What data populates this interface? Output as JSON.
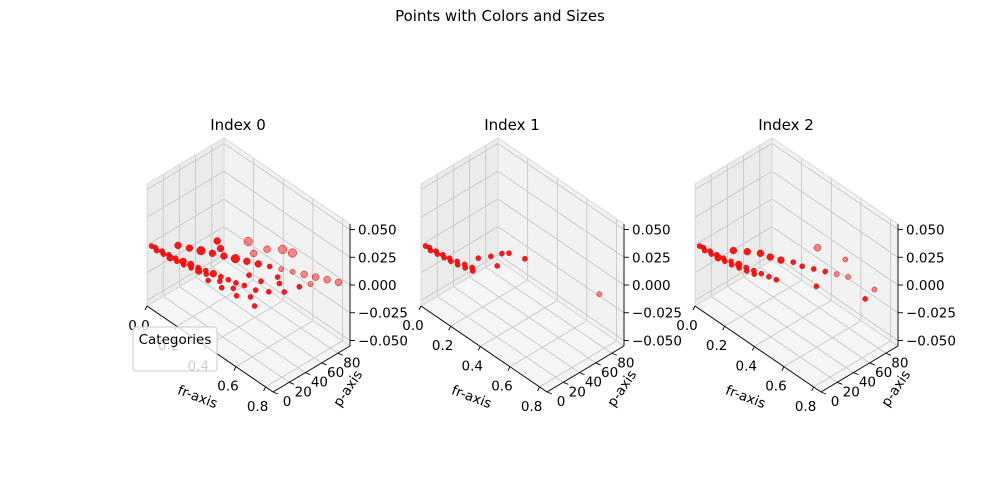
{
  "figure": {
    "suptitle": "Points with Colors and Sizes"
  },
  "legend": {
    "title": "Categories"
  },
  "colors": {
    "points": "#ff0000",
    "pane_back": "#f2f2f2",
    "pane_side": "#ebebeb",
    "pane_floor": "#f5f5f5",
    "grid": "#cccccc"
  },
  "chart_data": [
    {
      "type": "scatter",
      "title": "Index 0",
      "xlabel": "fr-axis",
      "ylabel": "p-axis",
      "zlabel": "",
      "xlim": [
        0,
        0.85
      ],
      "ylim": [
        0,
        95
      ],
      "zlim": [
        -0.055,
        0.055
      ],
      "xticks": [
        "0.0",
        "0.2",
        "0.4",
        "0.6",
        "0.8"
      ],
      "yticks": [
        "0",
        "20",
        "40",
        "60",
        "80"
      ],
      "zticks": [
        "−0.050",
        "−0.025",
        "0.000",
        "0.025",
        "0.050"
      ],
      "z_value": 0.0,
      "points": [
        {
          "fr": 0.02,
          "p": 2,
          "s": 3
        },
        {
          "fr": 0.04,
          "p": 3,
          "s": 3
        },
        {
          "fr": 0.06,
          "p": 1,
          "s": 3
        },
        {
          "fr": 0.08,
          "p": 4,
          "s": 3
        },
        {
          "fr": 0.1,
          "p": 2,
          "s": 3
        },
        {
          "fr": 0.12,
          "p": 5,
          "s": 3
        },
        {
          "fr": 0.14,
          "p": 3,
          "s": 4
        },
        {
          "fr": 0.16,
          "p": 6,
          "s": 3
        },
        {
          "fr": 0.18,
          "p": 4,
          "s": 3
        },
        {
          "fr": 0.2,
          "p": 8,
          "s": 4
        },
        {
          "fr": 0.22,
          "p": 5,
          "s": 3
        },
        {
          "fr": 0.24,
          "p": 10,
          "s": 4
        },
        {
          "fr": 0.26,
          "p": 7,
          "s": 3
        },
        {
          "fr": 0.28,
          "p": 12,
          "s": 3
        },
        {
          "fr": 0.3,
          "p": 9,
          "s": 4
        },
        {
          "fr": 0.32,
          "p": 14,
          "s": 3
        },
        {
          "fr": 0.34,
          "p": 11,
          "s": 3
        },
        {
          "fr": 0.36,
          "p": 16,
          "s": 4
        },
        {
          "fr": 0.38,
          "p": 6,
          "s": 3
        },
        {
          "fr": 0.4,
          "p": 18,
          "s": 3
        },
        {
          "fr": 0.42,
          "p": 13,
          "s": 3
        },
        {
          "fr": 0.44,
          "p": 20,
          "s": 3
        },
        {
          "fr": 0.46,
          "p": 8,
          "s": 3
        },
        {
          "fr": 0.48,
          "p": 22,
          "s": 3
        },
        {
          "fr": 0.5,
          "p": 15,
          "s": 3
        },
        {
          "fr": 0.52,
          "p": 25,
          "s": 3
        },
        {
          "fr": 0.55,
          "p": 10,
          "s": 3
        },
        {
          "fr": 0.58,
          "p": 28,
          "s": 3
        },
        {
          "fr": 0.6,
          "p": 18,
          "s": 3
        },
        {
          "fr": 0.63,
          "p": 35,
          "s": 3
        },
        {
          "fr": 0.66,
          "p": 12,
          "s": 3
        },
        {
          "fr": 0.1,
          "p": 20,
          "s": 4
        },
        {
          "fr": 0.15,
          "p": 25,
          "s": 4
        },
        {
          "fr": 0.2,
          "p": 30,
          "s": 5
        },
        {
          "fr": 0.25,
          "p": 35,
          "s": 4
        },
        {
          "fr": 0.3,
          "p": 40,
          "s": 4
        },
        {
          "fr": 0.35,
          "p": 45,
          "s": 5
        },
        {
          "fr": 0.4,
          "p": 50,
          "s": 4
        },
        {
          "fr": 0.45,
          "p": 55,
          "s": 4
        },
        {
          "fr": 0.5,
          "p": 60,
          "s": 3
        },
        {
          "fr": 0.55,
          "p": 65,
          "s": 3
        },
        {
          "fr": 0.6,
          "p": 70,
          "s": 3
        },
        {
          "fr": 0.65,
          "p": 75,
          "s": 4
        },
        {
          "fr": 0.7,
          "p": 80,
          "s": 4
        },
        {
          "fr": 0.75,
          "p": 85,
          "s": 4
        },
        {
          "fr": 0.8,
          "p": 90,
          "s": 4
        },
        {
          "fr": 0.7,
          "p": 60,
          "s": 3
        },
        {
          "fr": 0.68,
          "p": 45,
          "s": 3
        },
        {
          "fr": 0.72,
          "p": 70,
          "s": 3
        },
        {
          "fr": 0.38,
          "p": 62,
          "s": 4
        },
        {
          "fr": 0.58,
          "p": 55,
          "s": 3
        },
        {
          "fr": 0.55,
          "p": 40,
          "s": 3
        },
        {
          "fr": 0.48,
          "p": 38,
          "s": 3
        },
        {
          "fr": 0.62,
          "p": 50,
          "s": 3
        },
        {
          "fr": 0.3,
          "p": 70,
          "s": 5
        },
        {
          "fr": 0.4,
          "p": 75,
          "s": 4
        },
        {
          "fr": 0.45,
          "p": 85,
          "s": 5
        },
        {
          "fr": 0.5,
          "p": 88,
          "s": 5
        },
        {
          "fr": 0.2,
          "p": 50,
          "s": 4
        },
        {
          "fr": 0.25,
          "p": 45,
          "s": 4
        }
      ]
    },
    {
      "type": "scatter",
      "title": "Index 1",
      "xlabel": "fr-axis",
      "ylabel": "p-axis",
      "zlabel": "",
      "xlim": [
        0,
        0.85
      ],
      "ylim": [
        0,
        95
      ],
      "zlim": [
        -0.055,
        0.055
      ],
      "xticks": [
        "0.0",
        "0.2",
        "0.4",
        "0.6",
        "0.8"
      ],
      "yticks": [
        "0",
        "20",
        "40",
        "60",
        "80"
      ],
      "zticks": [
        "−0.050",
        "−0.025",
        "0.000",
        "0.025",
        "0.050"
      ],
      "z_value": 0.0,
      "points": [
        {
          "fr": 0.02,
          "p": 2,
          "s": 3
        },
        {
          "fr": 0.04,
          "p": 3,
          "s": 3
        },
        {
          "fr": 0.06,
          "p": 1,
          "s": 3
        },
        {
          "fr": 0.08,
          "p": 4,
          "s": 3
        },
        {
          "fr": 0.1,
          "p": 2,
          "s": 3
        },
        {
          "fr": 0.12,
          "p": 5,
          "s": 3
        },
        {
          "fr": 0.14,
          "p": 3,
          "s": 3
        },
        {
          "fr": 0.16,
          "p": 6,
          "s": 3
        },
        {
          "fr": 0.18,
          "p": 4,
          "s": 3
        },
        {
          "fr": 0.2,
          "p": 8,
          "s": 3
        },
        {
          "fr": 0.22,
          "p": 5,
          "s": 3
        },
        {
          "fr": 0.24,
          "p": 10,
          "s": 3
        },
        {
          "fr": 0.26,
          "p": 7,
          "s": 3
        },
        {
          "fr": 0.28,
          "p": 12,
          "s": 3
        },
        {
          "fr": 0.3,
          "p": 9,
          "s": 3
        },
        {
          "fr": 0.25,
          "p": 25,
          "s": 3
        },
        {
          "fr": 0.28,
          "p": 35,
          "s": 3
        },
        {
          "fr": 0.3,
          "p": 45,
          "s": 3
        },
        {
          "fr": 0.32,
          "p": 50,
          "s": 3
        },
        {
          "fr": 0.35,
          "p": 30,
          "s": 3
        },
        {
          "fr": 0.4,
          "p": 55,
          "s": 3
        },
        {
          "fr": 0.82,
          "p": 70,
          "s": 3
        }
      ]
    },
    {
      "type": "scatter",
      "title": "Index 2",
      "xlabel": "fr-axis",
      "ylabel": "p-axis",
      "zlabel": "",
      "xlim": [
        0,
        0.85
      ],
      "ylim": [
        0,
        95
      ],
      "zlim": [
        -0.055,
        0.055
      ],
      "xticks": [
        "0.0",
        "0.2",
        "0.4",
        "0.6",
        "0.8"
      ],
      "yticks": [
        "0",
        "20",
        "40",
        "60",
        "80"
      ],
      "zticks": [
        "−0.050",
        "−0.025",
        "0.000",
        "0.025",
        "0.050"
      ],
      "z_value": 0.0,
      "points": [
        {
          "fr": 0.02,
          "p": 2,
          "s": 3
        },
        {
          "fr": 0.04,
          "p": 3,
          "s": 3
        },
        {
          "fr": 0.06,
          "p": 1,
          "s": 3
        },
        {
          "fr": 0.08,
          "p": 4,
          "s": 3
        },
        {
          "fr": 0.1,
          "p": 2,
          "s": 3
        },
        {
          "fr": 0.12,
          "p": 5,
          "s": 3
        },
        {
          "fr": 0.14,
          "p": 3,
          "s": 4
        },
        {
          "fr": 0.16,
          "p": 6,
          "s": 3
        },
        {
          "fr": 0.18,
          "p": 4,
          "s": 3
        },
        {
          "fr": 0.2,
          "p": 8,
          "s": 3
        },
        {
          "fr": 0.22,
          "p": 5,
          "s": 3
        },
        {
          "fr": 0.24,
          "p": 10,
          "s": 4
        },
        {
          "fr": 0.26,
          "p": 7,
          "s": 3
        },
        {
          "fr": 0.28,
          "p": 12,
          "s": 3
        },
        {
          "fr": 0.3,
          "p": 9,
          "s": 3
        },
        {
          "fr": 0.32,
          "p": 14,
          "s": 3
        },
        {
          "fr": 0.34,
          "p": 11,
          "s": 3
        },
        {
          "fr": 0.36,
          "p": 16,
          "s": 3
        },
        {
          "fr": 0.4,
          "p": 18,
          "s": 3
        },
        {
          "fr": 0.44,
          "p": 20,
          "s": 3
        },
        {
          "fr": 0.15,
          "p": 20,
          "s": 4
        },
        {
          "fr": 0.2,
          "p": 28,
          "s": 4
        },
        {
          "fr": 0.25,
          "p": 35,
          "s": 4
        },
        {
          "fr": 0.3,
          "p": 38,
          "s": 4
        },
        {
          "fr": 0.35,
          "p": 42,
          "s": 4
        },
        {
          "fr": 0.4,
          "p": 48,
          "s": 3
        },
        {
          "fr": 0.45,
          "p": 50,
          "s": 3
        },
        {
          "fr": 0.5,
          "p": 55,
          "s": 3
        },
        {
          "fr": 0.55,
          "p": 60,
          "s": 3
        },
        {
          "fr": 0.6,
          "p": 65,
          "s": 3
        },
        {
          "fr": 0.65,
          "p": 70,
          "s": 3
        },
        {
          "fr": 0.8,
          "p": 75,
          "s": 3
        },
        {
          "fr": 0.4,
          "p": 78,
          "s": 4
        },
        {
          "fr": 0.55,
          "p": 85,
          "s": 3
        },
        {
          "fr": 0.82,
          "p": 60,
          "s": 3
        },
        {
          "fr": 0.6,
          "p": 40,
          "s": 3
        }
      ]
    }
  ]
}
